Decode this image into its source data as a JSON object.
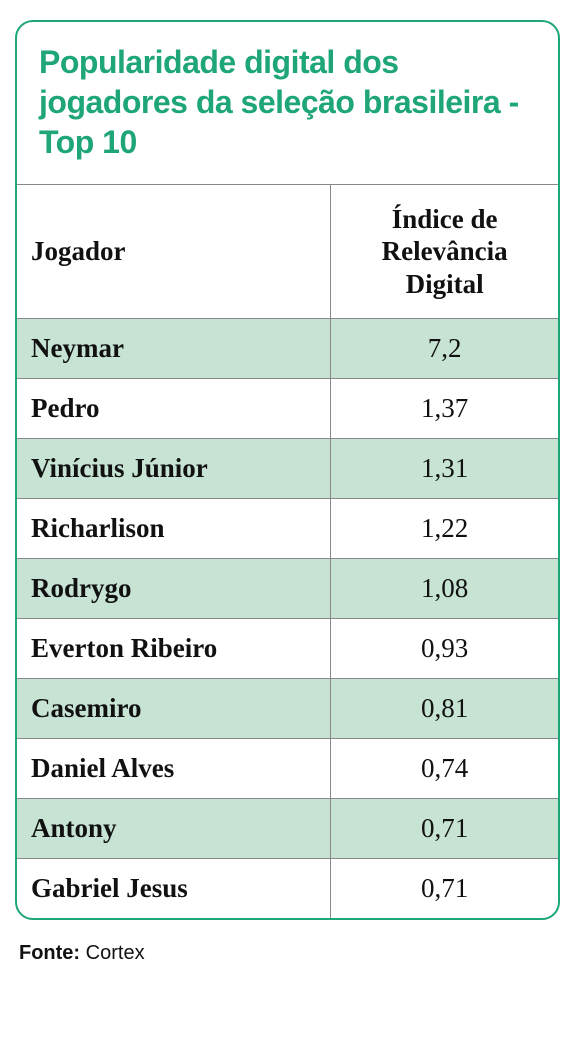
{
  "title": "Popularidade digital dos jogadores da seleção brasileira - Top 10",
  "table": {
    "columns": {
      "player": "Jogador",
      "index": "Índice de Relevância Digital"
    },
    "rows": [
      {
        "player": "Neymar",
        "index": "7,2"
      },
      {
        "player": "Pedro",
        "index": "1,37"
      },
      {
        "player": "Vinícius Júnior",
        "index": "1,31"
      },
      {
        "player": "Richarlison",
        "index": "1,22"
      },
      {
        "player": "Rodrygo",
        "index": "1,08"
      },
      {
        "player": "Everton Ribeiro",
        "index": "0,93"
      },
      {
        "player": "Casemiro",
        "index": "0,81"
      },
      {
        "player": "Daniel Alves",
        "index": "0,74"
      },
      {
        "player": "Antony",
        "index": "0,71"
      },
      {
        "player": "Gabriel Jesus",
        "index": "0,71"
      }
    ],
    "row_alt_color": "#c6e3d4",
    "border_color": "#888888"
  },
  "accent_color": "#1fa678",
  "source": {
    "label": "Fonte:",
    "name": "Cortex"
  }
}
